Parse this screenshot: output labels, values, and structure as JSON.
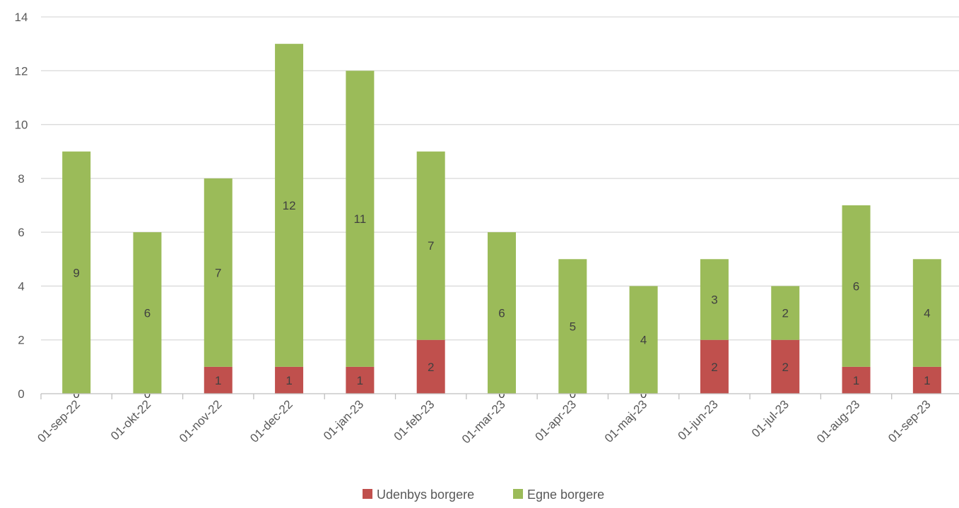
{
  "chart_data": {
    "type": "bar",
    "stacked": true,
    "categories": [
      "01-sep-22",
      "01-okt-22",
      "01-nov-22",
      "01-dec-22",
      "01-jan-23",
      "01-feb-23",
      "01-mar-23",
      "01-apr-23",
      "01-maj-23",
      "01-jun-23",
      "01-jul-23",
      "01-aug-23",
      "01-sep-23"
    ],
    "series": [
      {
        "name": "Udenbys borgere",
        "color": "#c0504d",
        "values": [
          0,
          0,
          1,
          1,
          1,
          2,
          0,
          0,
          0,
          2,
          2,
          1,
          1
        ]
      },
      {
        "name": "Egne borgere",
        "color": "#9bbb59",
        "values": [
          9,
          6,
          7,
          12,
          11,
          7,
          6,
          5,
          4,
          3,
          2,
          6,
          4
        ]
      }
    ],
    "ylim": [
      0,
      14
    ],
    "yticks": [
      0,
      2,
      4,
      6,
      8,
      10,
      12,
      14
    ],
    "grid": true,
    "legend": "bottom",
    "title": "",
    "xlabel": "",
    "ylabel": ""
  }
}
